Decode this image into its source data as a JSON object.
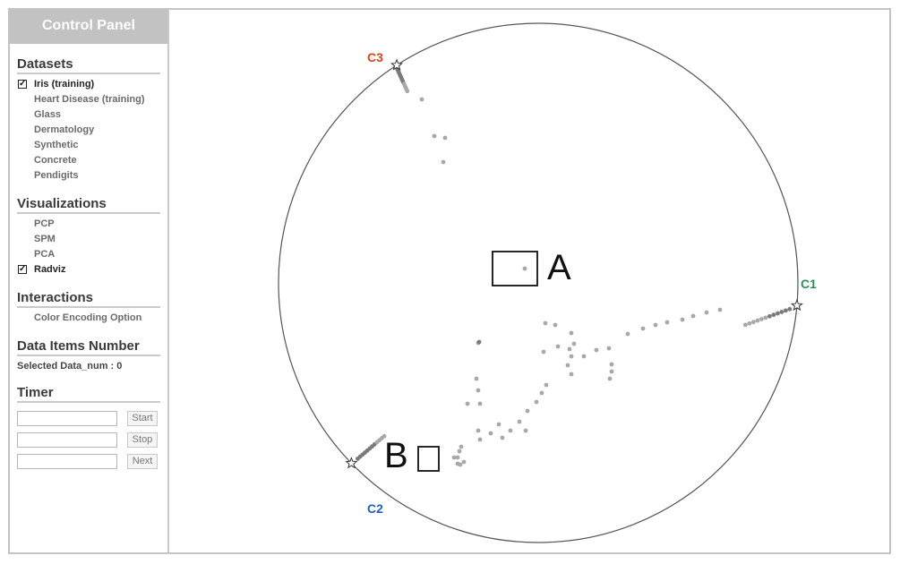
{
  "control_panel": {
    "title": "Control Panel",
    "datasets": {
      "header": "Datasets",
      "items": [
        {
          "label": "Iris (training)",
          "checked": true
        },
        {
          "label": "Heart Disease (training)",
          "checked": false
        },
        {
          "label": "Glass",
          "checked": false
        },
        {
          "label": "Dermatology",
          "checked": false
        },
        {
          "label": "Synthetic",
          "checked": false
        },
        {
          "label": "Concrete",
          "checked": false
        },
        {
          "label": "Pendigits",
          "checked": false
        }
      ]
    },
    "visualizations": {
      "header": "Visualizations",
      "items": [
        {
          "label": "PCP",
          "checked": false
        },
        {
          "label": "SPM",
          "checked": false
        },
        {
          "label": "PCA",
          "checked": false
        },
        {
          "label": "Radviz",
          "checked": true
        }
      ]
    },
    "interactions": {
      "header": "Interactions",
      "items": [
        {
          "label": "Color Encoding Option"
        }
      ]
    },
    "data_items": {
      "header": "Data Items Number",
      "selected_label": "Selected Data_num : 0"
    },
    "timer": {
      "header": "Timer",
      "start_label": "Start",
      "stop_label": "Stop",
      "next_label": "Next",
      "start_value": "",
      "stop_value": "",
      "next_value": ""
    }
  },
  "radviz": {
    "anchors": [
      {
        "label": "C1",
        "color": "#2e8b57",
        "angle_deg": 5
      },
      {
        "label": "C2",
        "color": "#1f5fbf",
        "angle_deg": 136
      },
      {
        "label": "C3",
        "color": "#d9431e",
        "angle_deg": 237
      }
    ],
    "annotations": [
      {
        "label": "A"
      },
      {
        "label": "B"
      }
    ],
    "point_color": "#a8a8a8",
    "dark_point_color": "#7a7a7a"
  }
}
